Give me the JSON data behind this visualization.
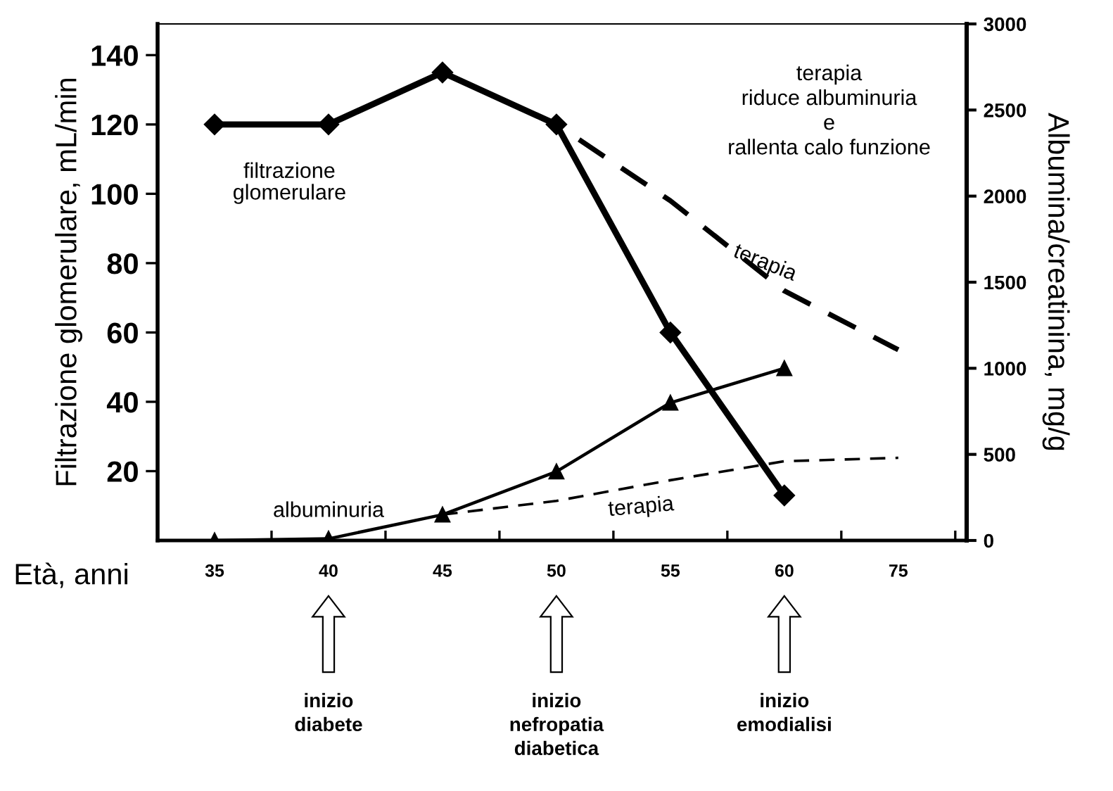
{
  "chart_data": {
    "type": "line",
    "categories": [
      "35",
      "40",
      "45",
      "50",
      "55",
      "60",
      "75"
    ],
    "xlabel": "Età, anni",
    "ylabel": "Filtrazione glomerulare, mL/min",
    "y2label": "Albumina/creatinina, mg/g",
    "ylim": [
      0,
      149
    ],
    "yticks": [
      20,
      40,
      60,
      80,
      100,
      120,
      140
    ],
    "y2lim": [
      0,
      3000
    ],
    "y2ticks": [
      0,
      500,
      1000,
      1500,
      2000,
      2500,
      3000
    ],
    "series": [
      {
        "name": "filtrazione\nglomerulare",
        "color": "#000000",
        "marker": "diamond",
        "line_style": "solid",
        "values": [
          120,
          120,
          135,
          120,
          60,
          13,
          null
        ]
      },
      {
        "name": "terapia",
        "color": "#000000",
        "marker": "none",
        "line_style": "dashed",
        "values": [
          null,
          null,
          135,
          120,
          98,
          72,
          55
        ]
      },
      {
        "name": "albuminuria",
        "color": "#000000",
        "marker": "triangle",
        "line_style": "solid",
        "axis": "y2",
        "values": [
          0,
          10,
          150,
          400,
          800,
          1000,
          null
        ]
      },
      {
        "name": "terapia",
        "color": "#000000",
        "marker": "none",
        "line_style": "dashed",
        "axis": "y2",
        "values": [
          null,
          null,
          150,
          230,
          350,
          460,
          480
        ]
      }
    ],
    "annotations": [
      "terapia\nriduce albuminuria\ne\nrallenta calo funzione",
      "inizio\ndiabete",
      "inizio\nnefropatia\ndiabetica",
      "inizio\nemodialisi"
    ],
    "grid": false,
    "legend": false
  }
}
